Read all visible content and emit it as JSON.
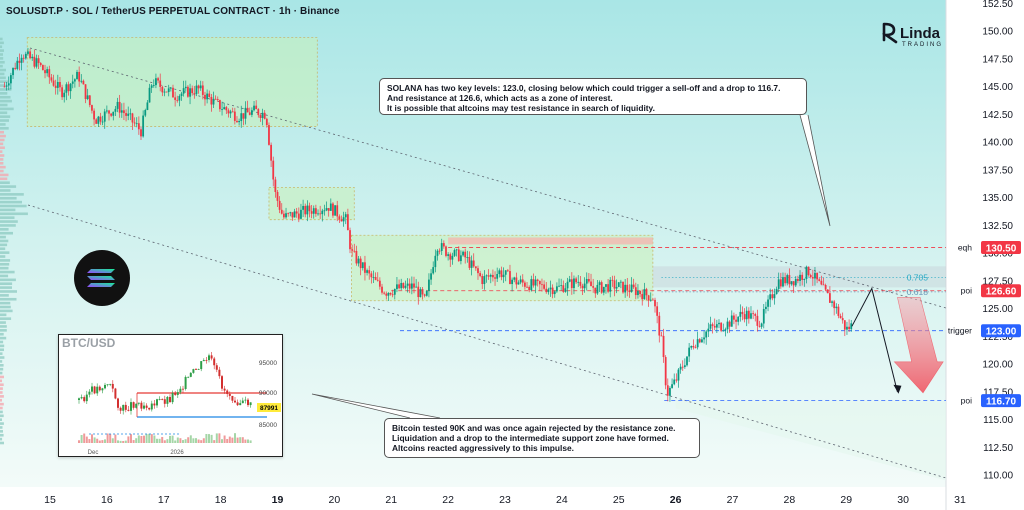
{
  "header": {
    "title": "SOLUSDT.P · SOL / TetherUS PERPETUAL CONTRACT · 1h · Binance"
  },
  "brand": {
    "logo_text": "Linda TRADING"
  },
  "annotations": {
    "top": [
      "SOLANA has two key levels: 123.0, closing below which could trigger a sell-off and a drop to 116.7.",
      "And resistance at 126.6, which acts as a zone of interest.",
      "It is possible that altcoins may test resistance in search of liquidity."
    ],
    "bottom": [
      "Bitcoin tested 90K and was once again rejected by the resistance zone.",
      "Liquidation and a drop to the intermediate support zone have formed.",
      "Altcoins reacted aggressively to this impulse."
    ]
  },
  "chart_data": {
    "type": "candlestick",
    "symbol": "SOLUSDT.P",
    "timeframe": "1h",
    "x_ticks": [
      "15",
      "16",
      "17",
      "18",
      "19",
      "20",
      "21",
      "22",
      "23",
      "24",
      "25",
      "26",
      "27",
      "28",
      "29",
      "30",
      "31"
    ],
    "bold_x_ticks": [
      "19",
      "26"
    ],
    "y_ticks": [
      110.0,
      112.5,
      115.0,
      117.5,
      120.0,
      122.5,
      125.0,
      127.5,
      130.0,
      132.5,
      135.0,
      137.5,
      140.0,
      142.5,
      145.0,
      147.5,
      150.0,
      152.5
    ],
    "ylim": [
      108.4,
      153.3
    ],
    "xlim": [
      14.2,
      31.3
    ],
    "grid": false,
    "price_tags": [
      {
        "value": 130.5,
        "label": "130.50",
        "color": "#f23645",
        "line_label": "eqh"
      },
      {
        "value": 126.6,
        "label": "126.60",
        "color": "#f23645",
        "line_label": "poi"
      },
      {
        "value": 123.0,
        "label": "123.00",
        "color": "#2962ff",
        "line_label": "trigger"
      },
      {
        "value": 116.7,
        "label": "116.70",
        "color": "#2962ff",
        "line_label": "poi"
      }
    ],
    "fib_labels": [
      {
        "value": 127.8,
        "label": "0.705",
        "color": "#26a8c4"
      },
      {
        "value": 126.5,
        "label": "0.618",
        "color": "#6b9ab8"
      }
    ],
    "price_path": [
      [
        14.2,
        145.0
      ],
      [
        14.5,
        148.0
      ],
      [
        14.8,
        147.0
      ],
      [
        15.2,
        144.5
      ],
      [
        15.5,
        146.0
      ],
      [
        15.8,
        142.0
      ],
      [
        16.2,
        143.2
      ],
      [
        16.6,
        141.0
      ],
      [
        16.8,
        145.5
      ],
      [
        17.2,
        144.2
      ],
      [
        17.6,
        144.8
      ],
      [
        17.9,
        143.5
      ],
      [
        18.3,
        142.3
      ],
      [
        18.6,
        142.8
      ],
      [
        18.8,
        142.5
      ],
      [
        18.95,
        135.5
      ],
      [
        19.1,
        133.2
      ],
      [
        19.5,
        133.8
      ],
      [
        19.9,
        134.2
      ],
      [
        20.2,
        133.0
      ],
      [
        20.3,
        130.0
      ],
      [
        20.6,
        128.0
      ],
      [
        20.9,
        126.5
      ],
      [
        21.1,
        126.8
      ],
      [
        21.4,
        127.0
      ],
      [
        21.6,
        125.6
      ],
      [
        21.8,
        130.8
      ],
      [
        22.0,
        130.0
      ],
      [
        22.3,
        129.6
      ],
      [
        22.6,
        127.6
      ],
      [
        22.9,
        128.3
      ],
      [
        23.2,
        127.4
      ],
      [
        23.6,
        127.0
      ],
      [
        23.9,
        126.8
      ],
      [
        24.3,
        127.5
      ],
      [
        24.6,
        126.8
      ],
      [
        24.9,
        127.1
      ],
      [
        25.3,
        126.6
      ],
      [
        25.6,
        126.0
      ],
      [
        25.75,
        122.0
      ],
      [
        25.85,
        117.3
      ],
      [
        26.0,
        118.5
      ],
      [
        26.3,
        121.8
      ],
      [
        26.6,
        123.2
      ],
      [
        26.9,
        123.6
      ],
      [
        27.2,
        124.6
      ],
      [
        27.5,
        123.8
      ],
      [
        27.8,
        127.5
      ],
      [
        28.1,
        127.6
      ],
      [
        28.35,
        128.4
      ],
      [
        28.6,
        126.6
      ],
      [
        28.8,
        125.2
      ],
      [
        29.0,
        123.1
      ],
      [
        29.1,
        123.5
      ]
    ],
    "forecast_path": [
      [
        29.1,
        123.4
      ],
      [
        29.45,
        126.8
      ],
      [
        29.9,
        117.5
      ]
    ],
    "inset": {
      "title": "BTC/USD",
      "y_ticks": [
        "95000",
        "90000",
        "85000"
      ],
      "price_tag": "87991",
      "x_ticks": [
        "Dec",
        "2026"
      ]
    }
  }
}
